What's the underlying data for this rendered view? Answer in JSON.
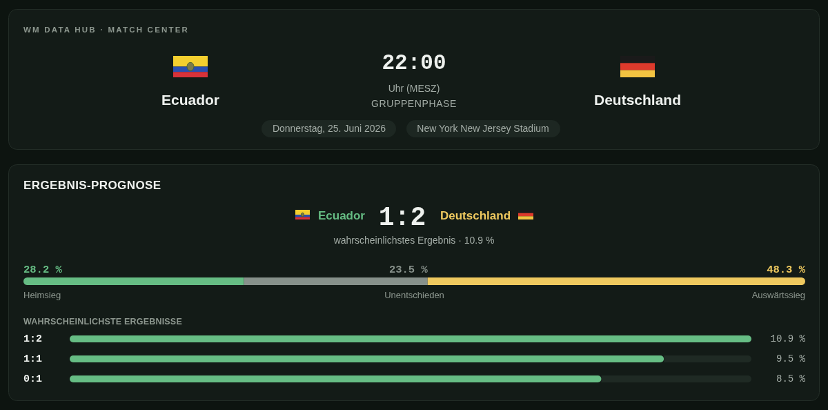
{
  "chart_data": [
    {
      "type": "other",
      "title": "WM DATA HUB · MATCH CENTER",
      "annotations": [
        "Ecuador",
        "22:00",
        "Uhr (MESZ)",
        "GRUPPENPHASE",
        "Deutschland",
        "Donnerstag, 25. Juni 2026",
        "New York New Jersey Stadium"
      ]
    },
    {
      "type": "bar",
      "orientation": "horizontal",
      "stacked": true,
      "title": "ERGEBNIS-PROGNOSE",
      "annotations": [
        "Ecuador",
        "1:2",
        "Deutschland",
        "wahrscheinlichstes Ergebnis · 10.9 %"
      ],
      "categories": [
        null
      ],
      "tick_labels": false,
      "series": [
        {
          "name": "Heimsieg",
          "color": "#66bd84",
          "values": [
            28.2
          ],
          "value_labels": [
            "28.2 %"
          ]
        },
        {
          "name": "Unentschieden",
          "color": "#87918b",
          "values": [
            23.5
          ],
          "value_labels": [
            "23.5 %"
          ]
        },
        {
          "name": "Auswärtssieg",
          "color": "#efc95f",
          "values": [
            48.3
          ],
          "value_labels": [
            "48.3 %"
          ]
        }
      ]
    },
    {
      "type": "bar",
      "orientation": "horizontal",
      "title": "WAHRSCHEINLICHSTE ERGEBNISSE",
      "categories": [
        "1:2",
        "1:1",
        "0:1"
      ],
      "values": [
        10.9,
        9.5,
        8.5
      ],
      "value_labels": [
        "10.9 %",
        "9.5 %",
        "8.5 %"
      ],
      "color": "#66bd84",
      "tick_labels": "y"
    }
  ]
}
